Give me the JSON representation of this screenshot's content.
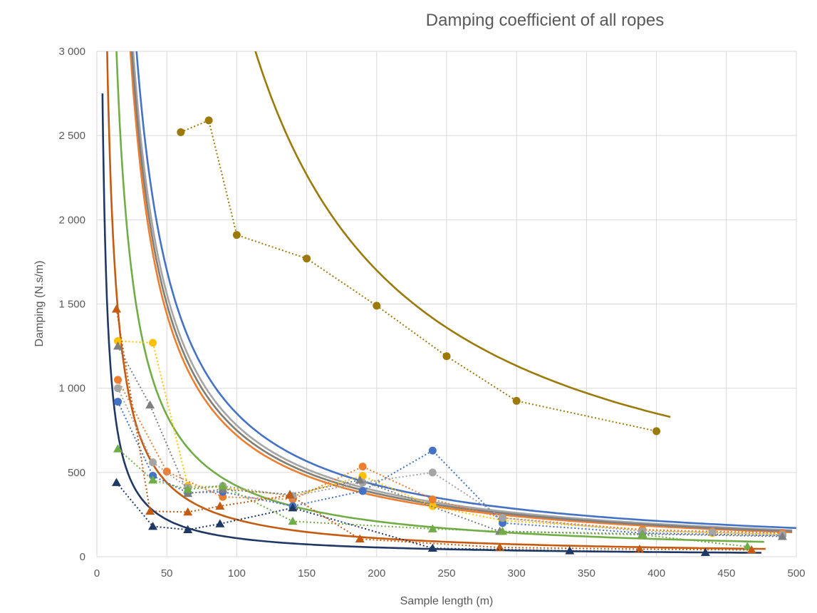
{
  "chart_data": {
    "type": "scatter",
    "title": "Damping coefficient of all ropes",
    "xlabel": "Sample length (m)",
    "ylabel": "Damping (N.s/m)",
    "xlim": [
      0,
      500
    ],
    "ylim": [
      0,
      3000
    ],
    "xticks": [
      0,
      50,
      100,
      150,
      200,
      250,
      300,
      350,
      400,
      450,
      500
    ],
    "yticks": [
      0,
      500,
      1000,
      1500,
      2000,
      2500,
      3000
    ],
    "xtick_labels": [
      "0",
      "50",
      "100",
      "150",
      "200",
      "250",
      "300",
      "350",
      "400",
      "450",
      "500"
    ],
    "ytick_labels": [
      "0",
      "500",
      "1 000",
      "1 500",
      "2 000",
      "2 500",
      "3 000"
    ],
    "grid": true,
    "legend": "none",
    "series": [
      {
        "name": "olive",
        "color": "#9C7A0A",
        "marker": "circle",
        "x": [
          60,
          80,
          100,
          150,
          200,
          250,
          300,
          400
        ],
        "y": [
          2520,
          2590,
          1910,
          1770,
          1490,
          1190,
          925,
          745
        ],
        "trend": {
          "a": 340000,
          "x_from": 52,
          "x_to": 410
        }
      },
      {
        "name": "yellow",
        "color": "#FFC000",
        "marker": "circle",
        "x": [
          15,
          40,
          65,
          90,
          140,
          190,
          240,
          290,
          390,
          440,
          490
        ],
        "y": [
          1280,
          1270,
          420,
          410,
          360,
          480,
          300,
          215,
          160,
          140,
          135
        ],
        "trend": {
          "a": 75000,
          "x_from": 15,
          "x_to": 497
        }
      },
      {
        "name": "orange",
        "color": "#ED7D31",
        "marker": "circle",
        "x": [
          15,
          50,
          90,
          140,
          190,
          240,
          290,
          390,
          440,
          490
        ],
        "y": [
          1050,
          505,
          355,
          340,
          535,
          340,
          230,
          160,
          150,
          140
        ],
        "trend": {
          "a": 72000,
          "x_from": 14,
          "x_to": 497
        }
      },
      {
        "name": "blue",
        "color": "#4472C4",
        "marker": "circle",
        "x": [
          15,
          40,
          65,
          90,
          140,
          190,
          240,
          290,
          390,
          490
        ],
        "y": [
          920,
          480,
          380,
          385,
          300,
          390,
          630,
          200,
          140,
          125
        ],
        "trend": {
          "a": 85000,
          "x_from": 13,
          "x_to": 500
        }
      },
      {
        "name": "gray",
        "color": "#A5A5A5",
        "marker": "circle",
        "x": [
          15,
          40,
          65,
          90,
          140,
          190,
          240,
          290,
          390,
          440,
          490
        ],
        "y": [
          1000,
          560,
          410,
          420,
          360,
          440,
          500,
          230,
          150,
          145,
          130
        ],
        "trend": {
          "a": 78000,
          "x_from": 14,
          "x_to": 497
        }
      },
      {
        "name": "dark gray triangle",
        "color": "#7F7F7F",
        "marker": "triangle",
        "x": [
          15,
          38,
          65,
          90,
          138,
          188,
          288,
          390,
          490
        ],
        "y": [
          1250,
          900,
          375,
          400,
          370,
          455,
          150,
          135,
          120
        ],
        "trend": {
          "a": 75000,
          "x_from": 14,
          "x_to": 497
        }
      },
      {
        "name": "green triangle",
        "color": "#70AD47",
        "marker": "triangle",
        "x": [
          15,
          40,
          65,
          90,
          140,
          240,
          290,
          390,
          465
        ],
        "y": [
          640,
          455,
          400,
          420,
          210,
          165,
          150,
          130,
          60
        ],
        "trend": {
          "a": 42000,
          "x_from": 9,
          "x_to": 477
        }
      },
      {
        "name": "brown triangle",
        "color": "#C55A11",
        "marker": "triangle",
        "x": [
          14,
          38,
          65,
          88,
          138,
          188,
          288,
          388,
          468
        ],
        "y": [
          1470,
          270,
          265,
          300,
          365,
          105,
          55,
          45,
          40
        ],
        "trend": {
          "a": 22000,
          "x_from": 7,
          "x_to": 478
        }
      },
      {
        "name": "navy triangle",
        "color": "#203864",
        "marker": "triangle",
        "x": [
          14,
          40,
          65,
          88,
          140,
          240,
          338,
          435
        ],
        "y": [
          440,
          180,
          160,
          195,
          290,
          50,
          35,
          25
        ],
        "trend": {
          "a": 11000,
          "x_from": 4,
          "x_to": 475
        }
      }
    ]
  }
}
